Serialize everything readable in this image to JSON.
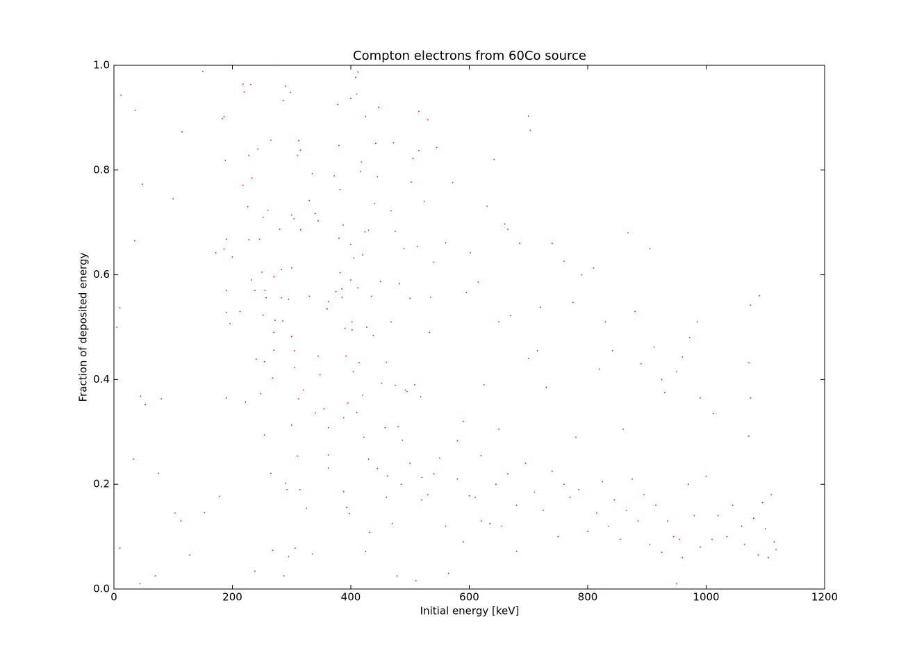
{
  "chart_data": {
    "type": "scatter",
    "title": "Compton electrons from 60Co source",
    "x_label": "Initial energy [keV]",
    "y_label": "Fraction of deposited energy",
    "color": "#ff0000",
    "xlim": [
      0,
      1200
    ],
    "xticks": [
      0,
      200,
      400,
      600,
      800,
      1000,
      1200
    ],
    "ylim": [
      0,
      1
    ],
    "yticks": [
      {
        "value": 0,
        "label": "0.0"
      },
      0.2,
      0.4,
      0.6,
      0.8,
      {
        "value": 1,
        "label": "1.0"
      }
    ],
    "x": [
      12,
      36,
      48,
      35,
      33,
      10,
      5,
      10,
      45,
      53,
      75,
      80,
      70,
      44,
      100,
      115,
      150,
      103,
      113,
      128,
      153,
      178,
      172,
      183,
      186,
      188,
      190,
      186,
      190,
      190,
      196,
      200,
      190,
      218,
      220,
      231,
      228,
      233,
      228,
      226,
      218,
      213,
      222,
      243,
      238,
      232,
      246,
      250,
      252,
      255,
      260,
      257,
      252,
      248,
      240,
      254,
      254,
      238,
      272,
      265,
      270,
      280,
      283,
      283,
      285,
      272,
      270,
      270,
      268,
      265,
      268,
      286,
      290,
      298,
      295,
      300,
      300,
      300,
      304,
      305,
      305,
      300,
      290,
      292,
      295,
      287,
      306,
      310,
      312,
      315,
      315,
      320,
      312,
      310,
      314,
      325,
      330,
      330,
      335,
      340,
      345,
      340,
      345,
      348,
      335,
      355,
      360,
      362,
      362,
      362,
      362,
      372,
      375,
      378,
      380,
      382,
      380,
      382,
      385,
      385,
      387,
      388,
      388,
      390,
      392,
      395,
      393,
      398,
      400,
      400,
      400,
      402,
      402,
      404,
      405,
      410,
      408,
      412,
      410,
      412,
      414,
      416,
      418,
      420,
      420,
      422,
      424,
      425,
      425,
      427,
      430,
      430,
      432,
      435,
      438,
      440,
      442,
      445,
      447,
      450,
      452,
      458,
      460,
      462,
      468,
      468,
      472,
      475,
      475,
      478,
      482,
      485,
      487,
      490,
      492,
      495,
      500,
      502,
      505,
      508,
      510,
      512,
      515,
      515,
      518,
      520,
      524,
      530,
      533,
      535,
      540,
      545,
      550,
      560,
      565,
      572,
      580,
      590,
      595,
      600,
      602,
      615,
      625,
      630,
      642,
      650,
      660,
      665,
      670,
      680,
      685,
      700,
      703,
      715,
      720,
      740,
      760,
      775,
      790,
      810,
      830,
      842,
      868,
      880,
      905,
      912,
      925,
      950,
      960,
      972,
      985,
      1012,
      1072,
      1075,
      1090,
      1075,
      1072,
      610,
      620,
      635,
      645,
      655,
      665,
      680,
      695,
      710,
      725,
      740,
      750,
      760,
      770,
      785,
      800,
      815,
      825,
      835,
      845,
      855,
      865,
      875,
      885,
      895,
      905,
      915,
      925,
      935,
      945,
      950,
      955,
      960,
      970,
      980,
      990,
      1000,
      1010,
      1020,
      1035,
      1045,
      1060,
      1065,
      1080,
      1088,
      1095,
      1100,
      1105,
      1110,
      1115,
      1118,
      580,
      560,
      540,
      520,
      500,
      480,
      460,
      445,
      470,
      530,
      590,
      620,
      650,
      700,
      730,
      780,
      820,
      860,
      890,
      930,
      990
    ],
    "values": [
      0.943,
      0.914,
      0.773,
      0.665,
      0.248,
      0.537,
      0.5,
      0.078,
      0.368,
      0.352,
      0.221,
      0.363,
      0.025,
      0.01,
      0.745,
      0.873,
      0.988,
      0.145,
      0.13,
      0.065,
      0.146,
      0.177,
      0.642,
      0.898,
      0.902,
      0.818,
      0.668,
      0.649,
      0.57,
      0.528,
      0.507,
      0.634,
      0.365,
      0.964,
      0.949,
      0.963,
      0.828,
      0.785,
      0.667,
      0.73,
      0.771,
      0.53,
      0.357,
      0.84,
      0.57,
      0.59,
      0.668,
      0.605,
      0.71,
      0.57,
      0.723,
      0.556,
      0.523,
      0.373,
      0.439,
      0.434,
      0.294,
      0.034,
      1.0,
      0.857,
      0.596,
      0.687,
      0.61,
      0.556,
      0.512,
      0.513,
      0.49,
      0.456,
      0.403,
      0.221,
      0.074,
      0.933,
      0.96,
      0.948,
      0.553,
      0.613,
      0.482,
      0.714,
      0.707,
      0.455,
      0.423,
      0.313,
      0.202,
      0.19,
      0.062,
      0.025,
      0.078,
      0.828,
      0.856,
      0.838,
      0.686,
      0.38,
      0.363,
      0.254,
      0.19,
      0.154,
      0.742,
      0.559,
      0.793,
      0.717,
      0.703,
      0.336,
      0.445,
      0.409,
      0.067,
      0.344,
      0.535,
      0.549,
      0.308,
      0.231,
      0.256,
      0.789,
      0.568,
      0.925,
      0.847,
      0.763,
      0.67,
      0.604,
      0.557,
      0.573,
      0.695,
      0.327,
      0.186,
      0.498,
      0.445,
      0.355,
      0.156,
      0.144,
      0.937,
      0.658,
      0.59,
      0.495,
      0.51,
      0.415,
      0.632,
      0.945,
      0.977,
      0.987,
      0.337,
      0.575,
      0.432,
      0.797,
      0.815,
      0.638,
      0.37,
      0.29,
      0.682,
      0.902,
      0.072,
      0.5,
      0.685,
      0.248,
      0.108,
      0.559,
      0.484,
      0.736,
      0.851,
      0.787,
      0.92,
      0.587,
      0.393,
      0.308,
      0.433,
      0.216,
      0.722,
      0.51,
      0.852,
      0.683,
      0.389,
      0.025,
      0.583,
      0.2,
      0.284,
      0.65,
      0.38,
      0.377,
      0.555,
      0.777,
      0.822,
      0.39,
      0.016,
      0.654,
      0.837,
      0.912,
      0.367,
      0.213,
      0.74,
      0.896,
      0.49,
      0.557,
      0.624,
      0.843,
      0.25,
      0.661,
      0.03,
      0.776,
      0.283,
      0.32,
      0.566,
      0.178,
      0.642,
      0.586,
      0.39,
      0.731,
      0.82,
      0.51,
      0.697,
      0.687,
      0.522,
      0.072,
      0.66,
      0.903,
      0.876,
      0.455,
      0.538,
      0.66,
      0.626,
      0.547,
      0.6,
      0.613,
      0.51,
      0.455,
      0.68,
      0.53,
      0.65,
      0.462,
      0.4,
      0.415,
      0.443,
      0.48,
      0.51,
      0.335,
      0.432,
      0.542,
      0.56,
      0.365,
      0.292,
      0.175,
      0.13,
      0.125,
      0.2,
      0.12,
      0.22,
      0.16,
      0.24,
      0.185,
      0.15,
      0.225,
      0.1,
      0.2,
      0.175,
      0.19,
      0.11,
      0.145,
      0.205,
      0.12,
      0.17,
      0.095,
      0.15,
      0.21,
      0.13,
      0.18,
      0.085,
      0.16,
      0.07,
      0.13,
      0.1,
      0.01,
      0.095,
      0.06,
      0.2,
      0.14,
      0.08,
      0.215,
      0.095,
      0.14,
      0.1,
      0.16,
      0.12,
      0.085,
      0.135,
      0.065,
      0.165,
      0.115,
      0.06,
      0.18,
      0.09,
      0.075,
      0.21,
      0.12,
      0.22,
      0.17,
      0.24,
      0.31,
      0.175,
      0.23,
      0.125,
      0.18,
      0.09,
      0.255,
      0.305,
      0.44,
      0.385,
      0.29,
      0.42,
      0.305,
      0.43,
      0.375,
      0.365
    ]
  }
}
